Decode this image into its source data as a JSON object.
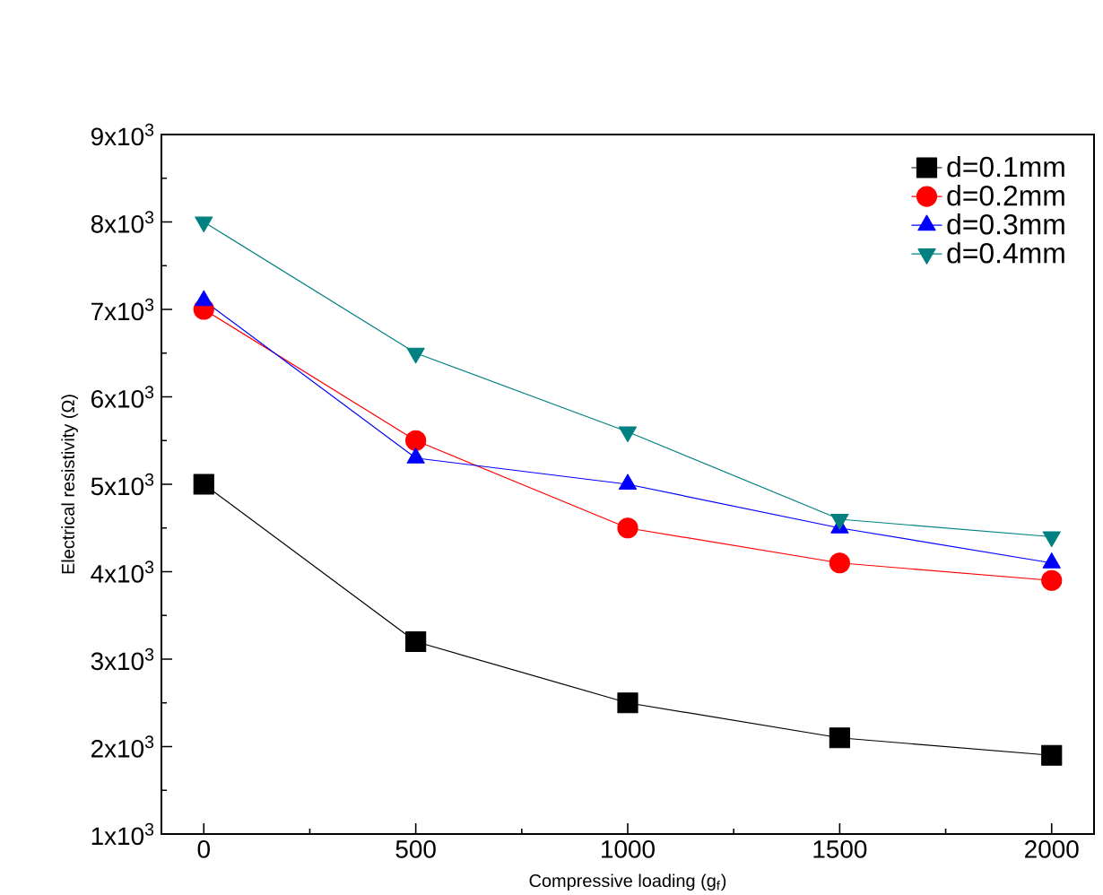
{
  "chart_data": {
    "type": "line",
    "xlabel": "Compressive loading (g$_{f}$)",
    "ylabel": "Electrical resistivity (Ω)",
    "x": [
      0,
      500,
      1000,
      1500,
      2000
    ],
    "series": [
      {
        "name": "d=0.1mm",
        "color": "#000000",
        "marker": "square",
        "values": [
          5000,
          3200,
          2500,
          2100,
          1900
        ]
      },
      {
        "name": "d=0.2mm",
        "color": "#ff0000",
        "marker": "circle",
        "values": [
          7000,
          5500,
          4500,
          4100,
          3900
        ]
      },
      {
        "name": "d=0.3mm",
        "color": "#0000ff",
        "marker": "triangle",
        "values": [
          7100,
          5300,
          5000,
          4500,
          4100
        ]
      },
      {
        "name": "d=0.4mm",
        "color": "#008080",
        "marker": "triangle-down",
        "values": [
          8000,
          6500,
          5600,
          4600,
          4400
        ]
      }
    ],
    "xlim": [
      -100,
      2100
    ],
    "xticks": [
      0,
      500,
      1000,
      1500,
      2000
    ],
    "ylim": [
      1000,
      9000
    ],
    "yticks": [
      {
        "value": 1000,
        "label": "1x10$^{3}$"
      },
      {
        "value": 2000,
        "label": "2x10$^{3}$"
      },
      {
        "value": 3000,
        "label": "3x10$^{3}$"
      },
      {
        "value": 4000,
        "label": "4x10$^{3}$"
      },
      {
        "value": 5000,
        "label": "5x10$^{3}$"
      },
      {
        "value": 6000,
        "label": "6x10$^{3}$"
      },
      {
        "value": 7000,
        "label": "7x10$^{3}$"
      },
      {
        "value": 8000,
        "label": "8x10$^{3}$"
      },
      {
        "value": 9000,
        "label": "9x10$^{3}$"
      }
    ],
    "legend": "top right",
    "grid": false,
    "line_style": "solid"
  }
}
